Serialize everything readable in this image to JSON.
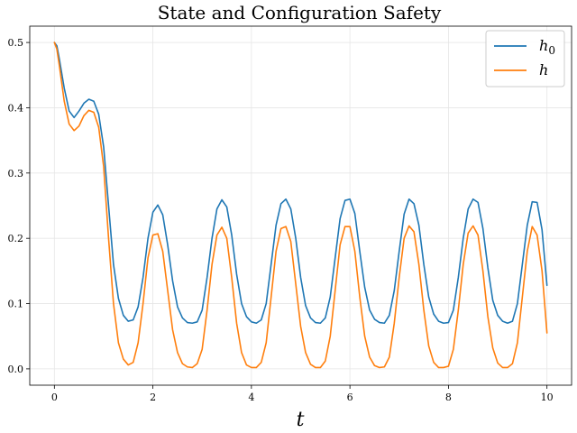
{
  "chart_data": {
    "type": "line",
    "title": "State and Configuration Safety",
    "xlabel": "t",
    "ylabel": "",
    "xlim": [
      -0.5,
      10.5
    ],
    "ylim": [
      -0.025,
      0.525
    ],
    "xticks": [
      0,
      2,
      4,
      6,
      8,
      10
    ],
    "xtick_labels": [
      "0",
      "2",
      "4",
      "6",
      "8",
      "10"
    ],
    "yticks": [
      0.0,
      0.1,
      0.2,
      0.3,
      0.4,
      0.5
    ],
    "ytick_labels": [
      "0.0",
      "0.1",
      "0.2",
      "0.3",
      "0.4",
      "0.5"
    ],
    "grid": true,
    "legend_position": "top-right",
    "series": [
      {
        "name": "h0",
        "label_main": "h",
        "label_sub": "0",
        "color": "#1f77b4",
        "x": [
          0.0,
          0.05,
          0.1,
          0.2,
          0.3,
          0.4,
          0.5,
          0.6,
          0.7,
          0.8,
          0.9,
          1.0,
          1.1,
          1.2,
          1.3,
          1.4,
          1.5,
          1.6,
          1.7,
          1.8,
          1.9,
          2.0,
          2.1,
          2.2,
          2.3,
          2.4,
          2.5,
          2.6,
          2.7,
          2.8,
          2.9,
          3.0,
          3.1,
          3.2,
          3.3,
          3.4,
          3.5,
          3.6,
          3.7,
          3.8,
          3.9,
          4.0,
          4.1,
          4.2,
          4.3,
          4.4,
          4.5,
          4.6,
          4.7,
          4.8,
          4.9,
          5.0,
          5.1,
          5.2,
          5.3,
          5.4,
          5.5,
          5.6,
          5.7,
          5.8,
          5.9,
          6.0,
          6.1,
          6.2,
          6.3,
          6.4,
          6.5,
          6.6,
          6.7,
          6.8,
          6.9,
          7.0,
          7.1,
          7.2,
          7.3,
          7.4,
          7.5,
          7.6,
          7.7,
          7.8,
          7.9,
          8.0,
          8.1,
          8.2,
          8.3,
          8.4,
          8.5,
          8.6,
          8.7,
          8.8,
          8.9,
          9.0,
          9.1,
          9.2,
          9.3,
          9.4,
          9.5,
          9.6,
          9.7,
          9.8,
          9.9,
          10.0
        ],
        "y": [
          0.5,
          0.495,
          0.475,
          0.43,
          0.395,
          0.385,
          0.395,
          0.407,
          0.413,
          0.41,
          0.39,
          0.34,
          0.25,
          0.16,
          0.108,
          0.082,
          0.073,
          0.075,
          0.095,
          0.14,
          0.2,
          0.24,
          0.251,
          0.236,
          0.19,
          0.135,
          0.095,
          0.078,
          0.071,
          0.07,
          0.072,
          0.09,
          0.14,
          0.2,
          0.245,
          0.259,
          0.248,
          0.205,
          0.145,
          0.1,
          0.08,
          0.072,
          0.07,
          0.075,
          0.1,
          0.16,
          0.22,
          0.253,
          0.26,
          0.245,
          0.2,
          0.14,
          0.097,
          0.078,
          0.071,
          0.07,
          0.078,
          0.11,
          0.17,
          0.23,
          0.258,
          0.26,
          0.238,
          0.18,
          0.125,
          0.09,
          0.076,
          0.071,
          0.07,
          0.082,
          0.12,
          0.18,
          0.237,
          0.26,
          0.253,
          0.22,
          0.16,
          0.11,
          0.084,
          0.073,
          0.07,
          0.071,
          0.09,
          0.14,
          0.2,
          0.245,
          0.26,
          0.255,
          0.215,
          0.155,
          0.105,
          0.082,
          0.073,
          0.07,
          0.073,
          0.1,
          0.16,
          0.22,
          0.256,
          0.255,
          0.213,
          0.128
        ]
      },
      {
        "name": "h",
        "label_main": "h",
        "label_sub": "",
        "color": "#ff7f0e",
        "x": [
          0.0,
          0.05,
          0.1,
          0.2,
          0.3,
          0.4,
          0.5,
          0.6,
          0.7,
          0.8,
          0.9,
          1.0,
          1.1,
          1.2,
          1.3,
          1.4,
          1.5,
          1.6,
          1.7,
          1.8,
          1.9,
          2.0,
          2.1,
          2.2,
          2.3,
          2.4,
          2.5,
          2.6,
          2.7,
          2.8,
          2.9,
          3.0,
          3.1,
          3.2,
          3.3,
          3.4,
          3.5,
          3.6,
          3.7,
          3.8,
          3.9,
          4.0,
          4.1,
          4.2,
          4.3,
          4.4,
          4.5,
          4.6,
          4.7,
          4.8,
          4.9,
          5.0,
          5.1,
          5.2,
          5.3,
          5.4,
          5.5,
          5.6,
          5.7,
          5.8,
          5.9,
          6.0,
          6.1,
          6.2,
          6.3,
          6.4,
          6.5,
          6.6,
          6.7,
          6.8,
          6.9,
          7.0,
          7.1,
          7.2,
          7.3,
          7.4,
          7.5,
          7.6,
          7.7,
          7.8,
          7.9,
          8.0,
          8.1,
          8.2,
          8.3,
          8.4,
          8.5,
          8.6,
          8.7,
          8.8,
          8.9,
          9.0,
          9.1,
          9.2,
          9.3,
          9.4,
          9.5,
          9.6,
          9.7,
          9.8,
          9.9,
          10.0
        ],
        "y": [
          0.5,
          0.49,
          0.465,
          0.41,
          0.375,
          0.365,
          0.372,
          0.388,
          0.396,
          0.393,
          0.37,
          0.31,
          0.2,
          0.1,
          0.04,
          0.015,
          0.006,
          0.01,
          0.04,
          0.1,
          0.17,
          0.205,
          0.207,
          0.18,
          0.12,
          0.06,
          0.025,
          0.008,
          0.003,
          0.002,
          0.008,
          0.03,
          0.09,
          0.16,
          0.205,
          0.217,
          0.2,
          0.14,
          0.07,
          0.025,
          0.006,
          0.002,
          0.002,
          0.01,
          0.04,
          0.11,
          0.18,
          0.215,
          0.218,
          0.195,
          0.13,
          0.065,
          0.025,
          0.007,
          0.002,
          0.002,
          0.012,
          0.05,
          0.12,
          0.19,
          0.218,
          0.218,
          0.18,
          0.11,
          0.05,
          0.018,
          0.005,
          0.002,
          0.003,
          0.018,
          0.07,
          0.14,
          0.2,
          0.219,
          0.21,
          0.16,
          0.09,
          0.035,
          0.01,
          0.002,
          0.002,
          0.004,
          0.03,
          0.09,
          0.16,
          0.208,
          0.219,
          0.205,
          0.15,
          0.08,
          0.032,
          0.009,
          0.002,
          0.002,
          0.008,
          0.04,
          0.11,
          0.18,
          0.218,
          0.205,
          0.15,
          0.055
        ]
      }
    ]
  }
}
